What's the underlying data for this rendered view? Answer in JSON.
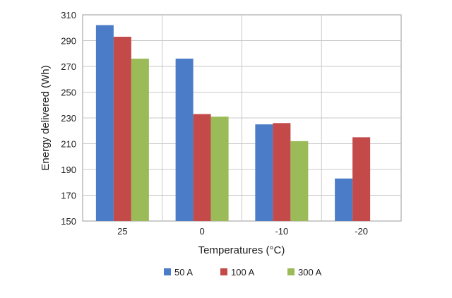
{
  "chart_data": {
    "type": "bar",
    "categories": [
      "25",
      "0",
      "-10",
      "-20"
    ],
    "series": [
      {
        "name": "50 A",
        "color": "#4a7cc7",
        "values": [
          302,
          276,
          225,
          183
        ]
      },
      {
        "name": "100 A",
        "color": "#c44a4a",
        "values": [
          293,
          233,
          226,
          215
        ]
      },
      {
        "name": "300 A",
        "color": "#9bbb59",
        "values": [
          276,
          231,
          212,
          null
        ]
      }
    ],
    "xlabel": "Temperatures (°C)",
    "ylabel": "Energy delivered (Wh)",
    "ylim": [
      150,
      310
    ],
    "yticks": [
      "150",
      "170",
      "190",
      "210",
      "230",
      "250",
      "270",
      "290",
      "310"
    ],
    "grid": true,
    "legend_position": "bottom"
  }
}
